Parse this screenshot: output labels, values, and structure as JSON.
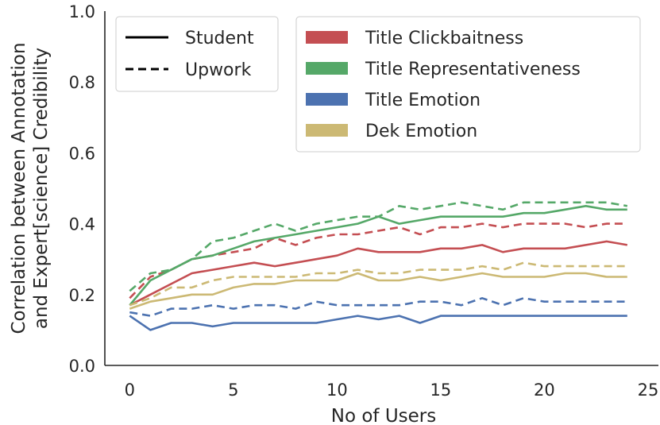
{
  "chart_data": {
    "type": "line",
    "xlabel": "No of Users",
    "ylabel_lines": [
      "Correlation between Annotation",
      "and Expert[science] Credibility"
    ],
    "xlim": [
      -1.2,
      25.5
    ],
    "ylim": [
      0.0,
      1.0
    ],
    "xticks": [
      0,
      5,
      10,
      15,
      20,
      25
    ],
    "yticks": [
      0.0,
      0.2,
      0.4,
      0.6,
      0.8,
      1.0
    ],
    "ytick_labels": [
      "0.0",
      "0.2",
      "0.4",
      "0.6",
      "0.8",
      "1.0"
    ],
    "grid": false,
    "x": [
      0,
      1,
      2,
      3,
      4,
      5,
      6,
      7,
      8,
      9,
      10,
      11,
      12,
      13,
      14,
      15,
      16,
      17,
      18,
      19,
      20,
      21,
      22,
      23,
      24
    ],
    "style_legend": [
      {
        "label": "Student",
        "dash": "solid"
      },
      {
        "label": "Upwork",
        "dash": "dashed"
      }
    ],
    "metric_legend": [
      {
        "label": "Title Clickbaitness",
        "color": "#c44e52"
      },
      {
        "label": "Title Representativeness",
        "color": "#55a868"
      },
      {
        "label": "Title Emotion",
        "color": "#4c72b0"
      },
      {
        "label": "Dek Emotion",
        "color": "#ccb974"
      }
    ],
    "series": [
      {
        "name": "Title Clickbaitness",
        "style": "Student",
        "color": "#c44e52",
        "dash": "solid",
        "values": [
          0.17,
          0.2,
          0.23,
          0.26,
          0.27,
          0.28,
          0.29,
          0.28,
          0.29,
          0.3,
          0.31,
          0.33,
          0.32,
          0.32,
          0.32,
          0.33,
          0.33,
          0.34,
          0.32,
          0.33,
          0.33,
          0.33,
          0.34,
          0.35,
          0.34
        ]
      },
      {
        "name": "Title Clickbaitness",
        "style": "Upwork",
        "color": "#c44e52",
        "dash": "dashed",
        "values": [
          0.19,
          0.25,
          0.27,
          0.3,
          0.31,
          0.32,
          0.33,
          0.36,
          0.34,
          0.36,
          0.37,
          0.37,
          0.38,
          0.39,
          0.37,
          0.39,
          0.39,
          0.4,
          0.39,
          0.4,
          0.4,
          0.4,
          0.39,
          0.4,
          0.4
        ]
      },
      {
        "name": "Title Representativeness",
        "style": "Student",
        "color": "#55a868",
        "dash": "solid",
        "values": [
          0.17,
          0.24,
          0.27,
          0.3,
          0.31,
          0.33,
          0.35,
          0.36,
          0.37,
          0.38,
          0.39,
          0.4,
          0.42,
          0.4,
          0.41,
          0.42,
          0.42,
          0.42,
          0.42,
          0.43,
          0.43,
          0.44,
          0.45,
          0.44,
          0.44
        ]
      },
      {
        "name": "Title Representativeness",
        "style": "Upwork",
        "color": "#55a868",
        "dash": "dashed",
        "values": [
          0.21,
          0.26,
          0.27,
          0.3,
          0.35,
          0.36,
          0.38,
          0.4,
          0.38,
          0.4,
          0.41,
          0.42,
          0.42,
          0.45,
          0.44,
          0.45,
          0.46,
          0.45,
          0.44,
          0.46,
          0.46,
          0.46,
          0.46,
          0.46,
          0.45
        ]
      },
      {
        "name": "Title Emotion",
        "style": "Student",
        "color": "#4c72b0",
        "dash": "solid",
        "values": [
          0.14,
          0.1,
          0.12,
          0.12,
          0.11,
          0.12,
          0.12,
          0.12,
          0.12,
          0.12,
          0.13,
          0.14,
          0.13,
          0.14,
          0.12,
          0.14,
          0.14,
          0.14,
          0.14,
          0.14,
          0.14,
          0.14,
          0.14,
          0.14,
          0.14
        ]
      },
      {
        "name": "Title Emotion",
        "style": "Upwork",
        "color": "#4c72b0",
        "dash": "dashed",
        "values": [
          0.15,
          0.14,
          0.16,
          0.16,
          0.17,
          0.16,
          0.17,
          0.17,
          0.16,
          0.18,
          0.17,
          0.17,
          0.17,
          0.17,
          0.18,
          0.18,
          0.17,
          0.19,
          0.17,
          0.19,
          0.18,
          0.18,
          0.18,
          0.18,
          0.18
        ]
      },
      {
        "name": "Dek Emotion",
        "style": "Student",
        "color": "#ccb974",
        "dash": "solid",
        "values": [
          0.16,
          0.18,
          0.19,
          0.2,
          0.2,
          0.22,
          0.23,
          0.23,
          0.24,
          0.24,
          0.24,
          0.26,
          0.24,
          0.24,
          0.25,
          0.24,
          0.25,
          0.26,
          0.25,
          0.25,
          0.25,
          0.26,
          0.26,
          0.25,
          0.25
        ]
      },
      {
        "name": "Dek Emotion",
        "style": "Upwork",
        "color": "#ccb974",
        "dash": "dashed",
        "values": [
          0.17,
          0.19,
          0.22,
          0.22,
          0.24,
          0.25,
          0.25,
          0.25,
          0.25,
          0.26,
          0.26,
          0.27,
          0.26,
          0.26,
          0.27,
          0.27,
          0.27,
          0.28,
          0.27,
          0.29,
          0.28,
          0.28,
          0.28,
          0.28,
          0.28
        ]
      }
    ]
  }
}
